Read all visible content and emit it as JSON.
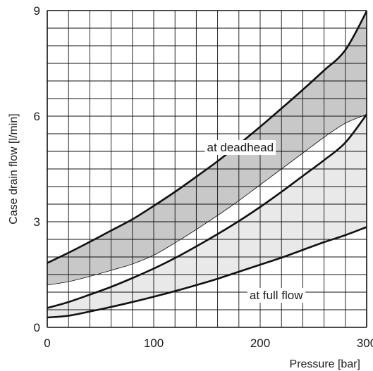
{
  "chart_data": {
    "type": "area",
    "title": "",
    "xlabel": "Pressure [bar]",
    "ylabel": "Case drain flow [l/min]",
    "xlim": [
      0,
      300
    ],
    "ylim": [
      0,
      9
    ],
    "x_ticks": [
      {
        "value": 0,
        "label": "0"
      },
      {
        "value": 100,
        "label": "100"
      },
      {
        "value": 200,
        "label": "200"
      },
      {
        "value": 300,
        "label": "300"
      }
    ],
    "y_ticks": [
      {
        "value": 0,
        "label": "0"
      },
      {
        "value": 3,
        "label": "3"
      },
      {
        "value": 6,
        "label": "6"
      },
      {
        "value": 9,
        "label": "9"
      }
    ],
    "grid": true,
    "grid_x_step": 20,
    "grid_y_step": 0.5,
    "x": [
      0,
      20,
      40,
      60,
      80,
      100,
      120,
      140,
      160,
      180,
      200,
      220,
      240,
      260,
      280,
      300
    ],
    "series": [
      {
        "name": "at deadhead",
        "band": "upper",
        "fill_color": "#c8c8c8",
        "upper": [
          1.83,
          2.12,
          2.43,
          2.75,
          3.07,
          3.45,
          3.85,
          4.28,
          4.72,
          5.2,
          5.7,
          6.22,
          6.75,
          7.3,
          7.88,
          8.98
        ],
        "lower": [
          1.2,
          1.3,
          1.45,
          1.62,
          1.8,
          2.05,
          2.4,
          2.78,
          3.18,
          3.6,
          4.05,
          4.5,
          4.95,
          5.4,
          5.8,
          6.05
        ]
      },
      {
        "name": "at full flow",
        "band": "lower",
        "fill_color": "#e9e9e9",
        "upper": [
          0.55,
          0.72,
          0.93,
          1.15,
          1.4,
          1.67,
          1.97,
          2.3,
          2.65,
          3.02,
          3.42,
          3.85,
          4.3,
          4.75,
          5.25,
          6.05
        ],
        "lower": [
          0.28,
          0.33,
          0.45,
          0.58,
          0.72,
          0.87,
          1.03,
          1.2,
          1.38,
          1.58,
          1.78,
          1.98,
          2.2,
          2.42,
          2.62,
          2.85
        ]
      }
    ],
    "annotations": [
      {
        "text": "at deadhead",
        "x": 150,
        "y": 5.0
      },
      {
        "text": "at full flow",
        "x": 190,
        "y": 0.8
      }
    ],
    "colors": {
      "line": "#111111",
      "grid": "#111111",
      "band_upper": "#c8c8c8",
      "band_lower": "#e9e9e9"
    }
  }
}
